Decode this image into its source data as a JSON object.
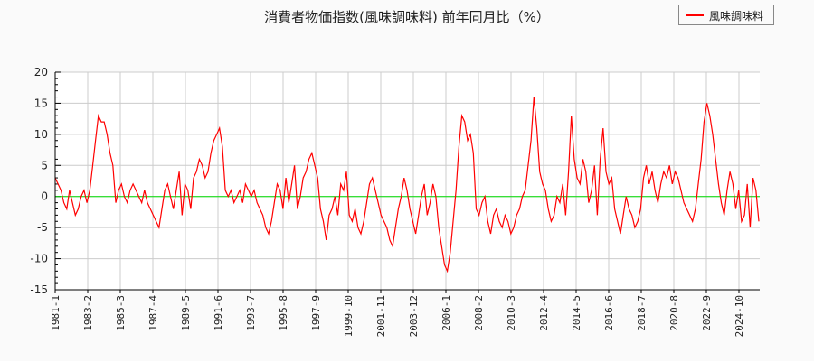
{
  "chart_data": {
    "type": "line",
    "title": "消費者物価指数(風味調味料) 前年同月比（%）",
    "xlabel": "",
    "ylabel": "",
    "ylim": [
      -15,
      20
    ],
    "yticks": [
      20,
      15,
      10,
      5,
      0,
      -5,
      -10,
      -15
    ],
    "xticks": [
      "1981-1",
      "1983-2",
      "1985-3",
      "1987-4",
      "1989-5",
      "1991-6",
      "1993-7",
      "1995-8",
      "1997-9",
      "1999-10",
      "2001-11",
      "2003-12",
      "2006-1",
      "2008-2",
      "2010-3",
      "2012-4",
      "2014-5",
      "2016-6",
      "2018-7",
      "2020-8",
      "2022-9",
      "2024-10"
    ],
    "grid": true,
    "legend_position": "top-right",
    "reference_line": {
      "y": 0,
      "color": "#00dd00"
    },
    "x_start": "1981-1",
    "sample_step_months": 3,
    "series": [
      {
        "name": "風味調味料",
        "color": "#ff0000",
        "values": [
          3,
          2,
          1,
          -1,
          -2,
          1,
          -1,
          -3,
          -2,
          0,
          1,
          -1,
          1,
          5,
          9,
          13,
          12,
          12,
          10,
          7,
          5,
          -1,
          1,
          2,
          0,
          -1,
          1,
          2,
          1,
          0,
          -1,
          1,
          -1,
          -2,
          -3,
          -4,
          -5,
          -2,
          1,
          2,
          0,
          -2,
          1,
          4,
          -3,
          2,
          1,
          -2,
          3,
          4,
          6,
          5,
          3,
          4,
          7,
          9,
          10,
          11,
          8,
          1,
          0,
          1,
          -1,
          0,
          1,
          -1,
          2,
          1,
          0,
          1,
          -1,
          -2,
          -3,
          -5,
          -6,
          -4,
          -1,
          2,
          1,
          -2,
          3,
          -1,
          2,
          5,
          -2,
          0,
          3,
          4,
          6,
          7,
          5,
          3,
          -2,
          -4,
          -7,
          -3,
          -2,
          0,
          -3,
          2,
          1,
          4,
          -3,
          -4,
          -2,
          -5,
          -6,
          -4,
          -1,
          2,
          3,
          1,
          -1,
          -3,
          -4,
          -5,
          -7,
          -8,
          -5,
          -2,
          0,
          3,
          1,
          -2,
          -4,
          -6,
          -3,
          0,
          2,
          -3,
          -1,
          2,
          0,
          -5,
          -8,
          -11,
          -12,
          -9,
          -4,
          1,
          8,
          13,
          12,
          9,
          10,
          7,
          -2,
          -3,
          -1,
          0,
          -4,
          -6,
          -3,
          -2,
          -4,
          -5,
          -3,
          -4,
          -6,
          -5,
          -3,
          -2,
          0,
          1,
          5,
          9,
          16,
          11,
          4,
          2,
          1,
          -2,
          -4,
          -3,
          0,
          -1,
          2,
          -3,
          4,
          13,
          6,
          3,
          2,
          6,
          4,
          -1,
          1,
          5,
          -3,
          6,
          11,
          4,
          2,
          3,
          -2,
          -4,
          -6,
          -3,
          0,
          -2,
          -3,
          -5,
          -4,
          -2,
          3,
          5,
          2,
          4,
          1,
          -1,
          2,
          4,
          3,
          5,
          2,
          4,
          3,
          1,
          -1,
          -2,
          -3,
          -4,
          -2,
          2,
          6,
          12,
          15,
          13,
          10,
          6,
          2,
          -1,
          -3,
          1,
          4,
          2,
          -2,
          1,
          -4,
          -3,
          2,
          -5,
          3,
          1,
          -4
        ]
      }
    ]
  },
  "legend": {
    "label": "風味調味料"
  }
}
